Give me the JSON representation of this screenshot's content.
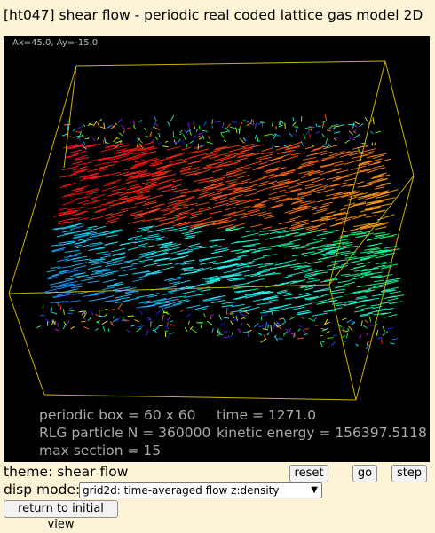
{
  "header": {
    "title": "[ht047] shear flow - periodic real coded lattice gas model 2D"
  },
  "viewport": {
    "angle_label": "Ax=45.0, Ay=-15.0",
    "info_left": [
      "periodic box = 60 x 60",
      "RLG particle N = 360000",
      "max section = 15"
    ],
    "info_right": [
      "time = 1271.0",
      "kinetic energy = 156397.5118"
    ],
    "box_color": "#c8b400"
  },
  "controls": {
    "theme_label": "theme: shear flow",
    "reset_label": "reset",
    "go_label": "go",
    "step_label": "step",
    "disp_mode_label": "disp mode:",
    "disp_mode_value": "grid2d: time-averaged flow z:density",
    "return_label": "return to initial view"
  }
}
